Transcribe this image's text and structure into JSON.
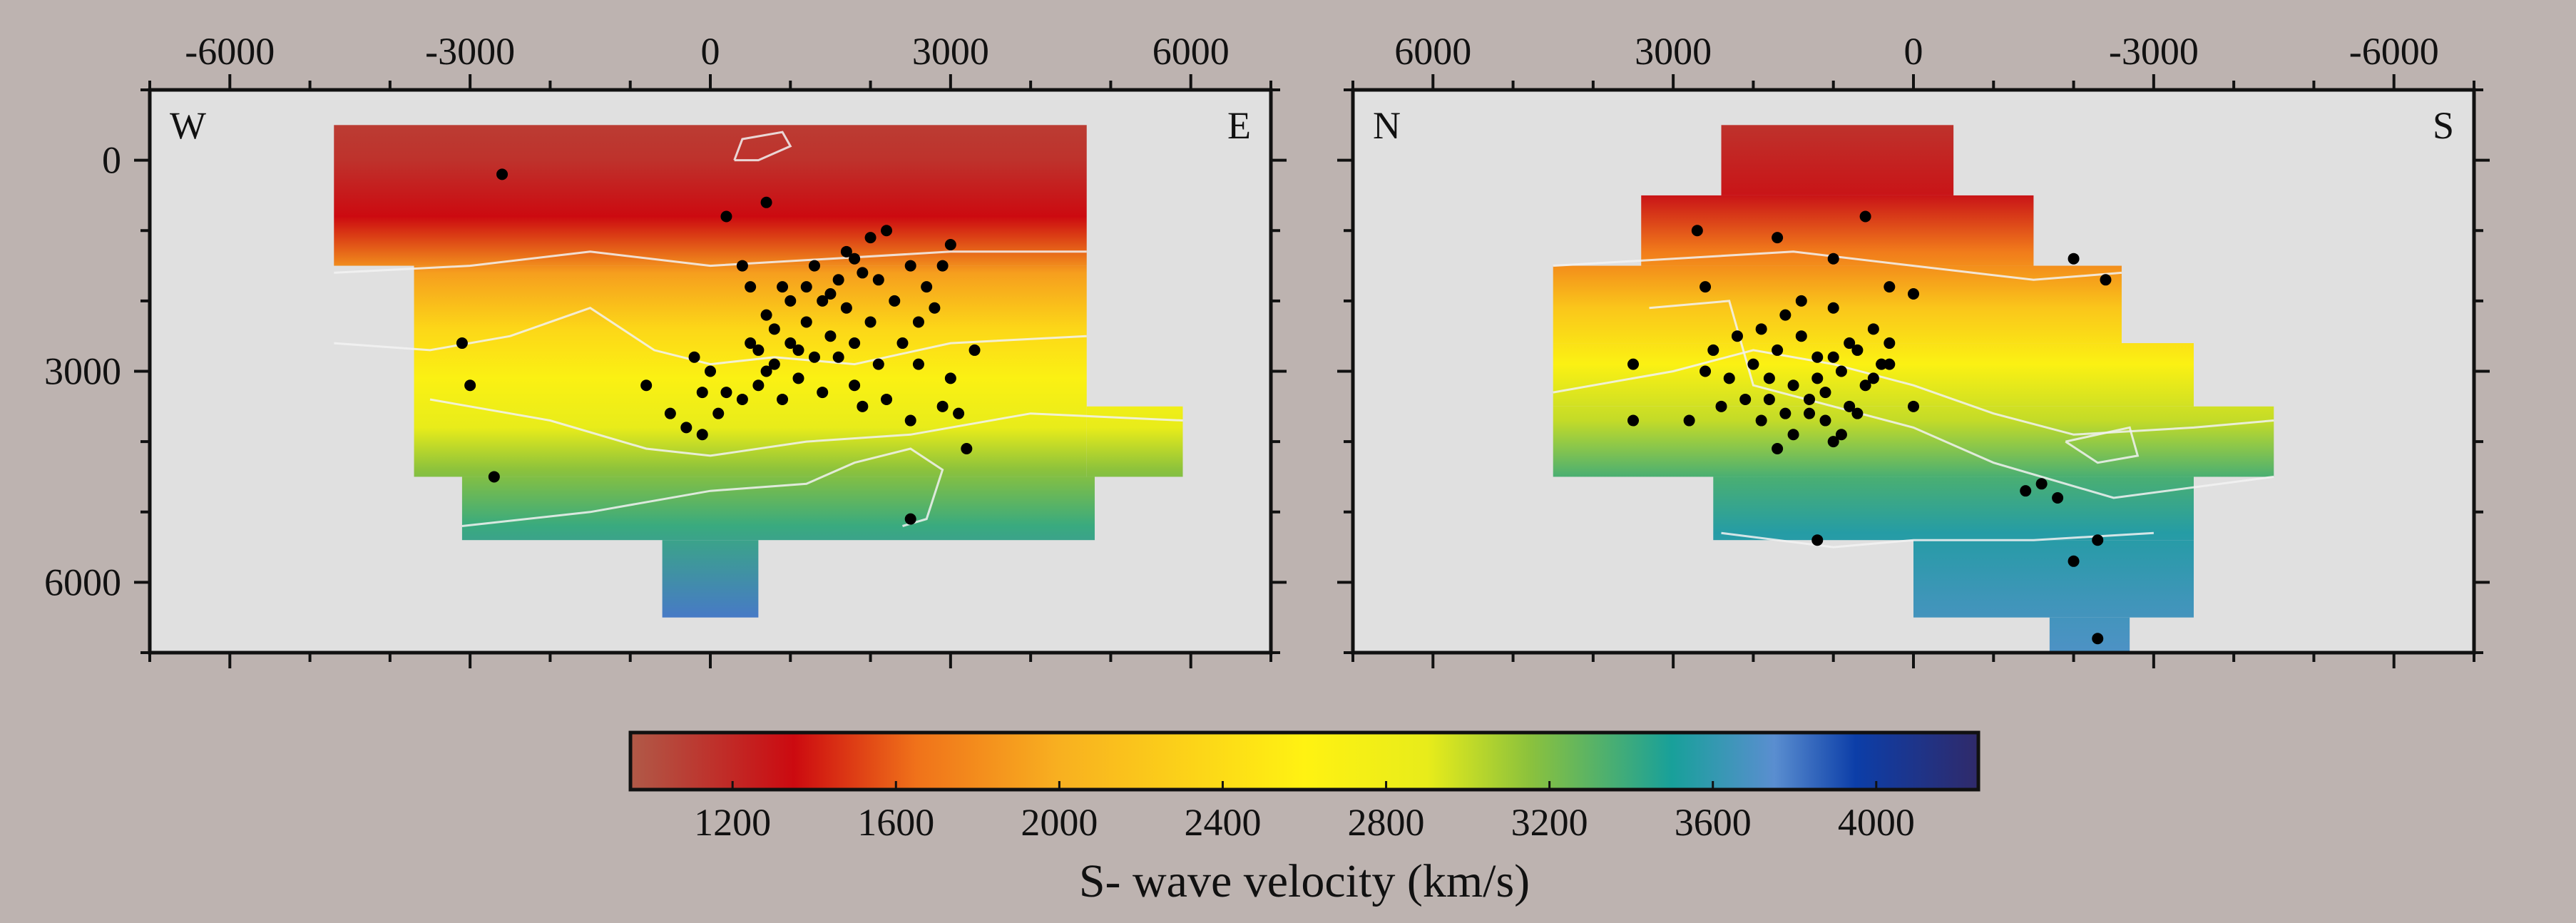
{
  "chart_data": [
    {
      "type": "heatmap",
      "title": "",
      "xlabel": "",
      "ylabel": "",
      "orientation": {
        "left": "W",
        "right": "E"
      },
      "xlim": [
        -7000,
        7000
      ],
      "ylim": [
        7000,
        -1000
      ],
      "x_ticks": [
        -6000,
        -3000,
        0,
        3000,
        6000
      ],
      "x_tick_labels": [
        "-6000",
        "-3000",
        "0",
        "3000",
        "6000"
      ],
      "y_ticks": [
        0,
        3000,
        6000
      ],
      "y_tick_labels": [
        "0",
        "3000",
        "6000"
      ],
      "grid": false,
      "velocity_field": [
        {
          "depth": -500,
          "velocity": 1100
        },
        {
          "depth": 0,
          "velocity": 1150
        },
        {
          "depth": 800,
          "velocity": 1350
        },
        {
          "depth": 1600,
          "velocity": 1900
        },
        {
          "depth": 2400,
          "velocity": 2350
        },
        {
          "depth": 3100,
          "velocity": 2650
        },
        {
          "depth": 3800,
          "velocity": 2900
        },
        {
          "depth": 4400,
          "velocity": 3150
        },
        {
          "depth": 5200,
          "velocity": 3400
        },
        {
          "depth": 6500,
          "velocity": 3800
        }
      ],
      "earthquakes": [
        [
          -2600,
          200
        ],
        [
          -3100,
          2600
        ],
        [
          -3000,
          3200
        ],
        [
          -2700,
          4500
        ],
        [
          -800,
          3200
        ],
        [
          -500,
          3600
        ],
        [
          -300,
          3800
        ],
        [
          -100,
          3900
        ],
        [
          200,
          800
        ],
        [
          700,
          600
        ],
        [
          3000,
          1200
        ],
        [
          2900,
          1500
        ],
        [
          3300,
          2700
        ],
        [
          3000,
          3100
        ],
        [
          3100,
          3600
        ],
        [
          2900,
          3500
        ],
        [
          3200,
          4100
        ],
        [
          2500,
          5100
        ],
        [
          2500,
          3700
        ],
        [
          400,
          1500
        ],
        [
          500,
          1800
        ],
        [
          -200,
          2800
        ],
        [
          0,
          3000
        ],
        [
          200,
          3300
        ],
        [
          400,
          3400
        ],
        [
          -100,
          3300
        ],
        [
          100,
          3600
        ],
        [
          600,
          3200
        ],
        [
          800,
          2900
        ],
        [
          1000,
          2600
        ],
        [
          1200,
          2300
        ],
        [
          1400,
          2000
        ],
        [
          1600,
          1700
        ],
        [
          1800,
          1400
        ],
        [
          2000,
          1100
        ],
        [
          2200,
          1000
        ],
        [
          1900,
          1600
        ],
        [
          1700,
          2100
        ],
        [
          1500,
          2500
        ],
        [
          1300,
          2800
        ],
        [
          1100,
          3100
        ],
        [
          900,
          3400
        ],
        [
          700,
          3000
        ],
        [
          1400,
          3300
        ],
        [
          1800,
          3200
        ],
        [
          2100,
          2900
        ],
        [
          2400,
          2600
        ],
        [
          2600,
          2300
        ],
        [
          2300,
          2000
        ],
        [
          2500,
          1500
        ],
        [
          2700,
          1800
        ],
        [
          2000,
          2300
        ],
        [
          1600,
          2800
        ],
        [
          1200,
          1800
        ],
        [
          1000,
          2000
        ],
        [
          800,
          2400
        ],
        [
          600,
          2700
        ],
        [
          1900,
          3500
        ],
        [
          2200,
          3400
        ],
        [
          2800,
          2100
        ],
        [
          2600,
          2900
        ],
        [
          1500,
          1900
        ],
        [
          1700,
          1300
        ],
        [
          2100,
          1700
        ],
        [
          1300,
          1500
        ],
        [
          900,
          1800
        ],
        [
          1100,
          2700
        ],
        [
          700,
          2200
        ],
        [
          500,
          2600
        ],
        [
          1800,
          2600
        ]
      ]
    },
    {
      "type": "heatmap",
      "title": "",
      "xlabel": "",
      "ylabel": "",
      "orientation": {
        "left": "N",
        "right": "S"
      },
      "xlim": [
        7000,
        -7000
      ],
      "ylim": [
        7000,
        -1000
      ],
      "x_ticks": [
        6000,
        3000,
        0,
        -3000,
        -6000
      ],
      "x_tick_labels": [
        "6000",
        "3000",
        "0",
        "-3000",
        "-6000"
      ],
      "y_ticks": [
        0,
        3000,
        6000
      ],
      "y_tick_labels": [],
      "grid": false,
      "velocity_field": [
        {
          "depth": -500,
          "velocity": 1150
        },
        {
          "depth": 500,
          "velocity": 1300
        },
        {
          "depth": 1300,
          "velocity": 1700
        },
        {
          "depth": 2100,
          "velocity": 2200
        },
        {
          "depth": 2900,
          "velocity": 2650
        },
        {
          "depth": 3700,
          "velocity": 3000
        },
        {
          "depth": 4500,
          "velocity": 3350
        },
        {
          "depth": 5300,
          "velocity": 3550
        },
        {
          "depth": 6300,
          "velocity": 3650
        },
        {
          "depth": 7000,
          "velocity": 3700
        }
      ],
      "earthquakes": [
        [
          3500,
          2900
        ],
        [
          3500,
          3700
        ],
        [
          2700,
          1000
        ],
        [
          600,
          800
        ],
        [
          1700,
          1100
        ],
        [
          2600,
          1800
        ],
        [
          1000,
          1400
        ],
        [
          300,
          1800
        ],
        [
          -2000,
          1400
        ],
        [
          -2400,
          1700
        ],
        [
          -1400,
          4700
        ],
        [
          -1800,
          4800
        ],
        [
          -1600,
          4600
        ],
        [
          -2000,
          5700
        ],
        [
          -2300,
          5400
        ],
        [
          -2300,
          6800
        ],
        [
          1200,
          5400
        ],
        [
          0,
          3500
        ],
        [
          300,
          2600
        ],
        [
          0,
          1900
        ],
        [
          2500,
          2700
        ],
        [
          2300,
          3100
        ],
        [
          2100,
          3400
        ],
        [
          1900,
          3700
        ],
        [
          1700,
          4100
        ],
        [
          1500,
          3900
        ],
        [
          1300,
          3600
        ],
        [
          1100,
          3300
        ],
        [
          900,
          3000
        ],
        [
          700,
          2700
        ],
        [
          500,
          2400
        ],
        [
          800,
          3500
        ],
        [
          600,
          3200
        ],
        [
          400,
          2900
        ],
        [
          1200,
          2800
        ],
        [
          1400,
          2500
        ],
        [
          1600,
          2200
        ],
        [
          1000,
          2100
        ],
        [
          1800,
          3100
        ],
        [
          2000,
          2900
        ],
        [
          1500,
          3200
        ],
        [
          1200,
          3100
        ],
        [
          1000,
          2800
        ],
        [
          800,
          2600
        ],
        [
          1300,
          3400
        ],
        [
          1600,
          3600
        ],
        [
          1800,
          3400
        ],
        [
          2200,
          2500
        ],
        [
          1100,
          3700
        ],
        [
          900,
          3900
        ],
        [
          700,
          3600
        ],
        [
          1700,
          2700
        ],
        [
          1900,
          2400
        ],
        [
          1400,
          2000
        ],
        [
          2600,
          3000
        ],
        [
          2400,
          3500
        ],
        [
          2800,
          3700
        ],
        [
          500,
          3100
        ],
        [
          300,
          2900
        ],
        [
          1000,
          4000
        ]
      ]
    }
  ],
  "colorbar": {
    "vmin": 950,
    "vmax": 4250,
    "ticks": [
      1200,
      1600,
      2000,
      2400,
      2800,
      3200,
      3600,
      4000
    ],
    "tick_labels": [
      "1200",
      "1600",
      "2000",
      "2400",
      "2800",
      "3200",
      "3600",
      "4000"
    ],
    "label": "S- wave velocity (km/s)",
    "stops": [
      {
        "value": 950,
        "color": "#b05a48"
      },
      {
        "value": 1350,
        "color": "#cc0a10"
      },
      {
        "value": 1650,
        "color": "#f0721a"
      },
      {
        "value": 2000,
        "color": "#f8b020"
      },
      {
        "value": 2600,
        "color": "#fff212"
      },
      {
        "value": 2900,
        "color": "#e8ec1a"
      },
      {
        "value": 3150,
        "color": "#8cc23c"
      },
      {
        "value": 3500,
        "color": "#18a09a"
      },
      {
        "value": 3750,
        "color": "#5a8ed0"
      },
      {
        "value": 3950,
        "color": "#0c3ea8"
      },
      {
        "value": 4250,
        "color": "#302a6a"
      }
    ]
  },
  "colors": {
    "background": "#bdb3b0",
    "plot_background": "#e0e0e0",
    "axis": "#111111",
    "contour": "#f2f2f2",
    "event": "#000000"
  }
}
